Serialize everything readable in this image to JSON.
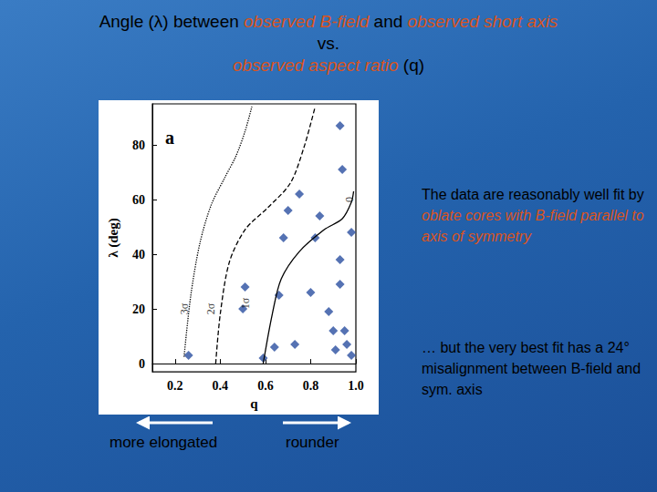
{
  "slide": {
    "title": [
      [
        {
          "text": "Angle (λ) between ",
          "color": "#000000"
        },
        {
          "text": "observed B-field",
          "color": "#d9541e"
        },
        {
          "text": " and ",
          "color": "#000000"
        },
        {
          "text": "observed short axis",
          "color": "#d9541e"
        }
      ],
      [
        {
          "text": "vs.",
          "color": "#000000"
        }
      ],
      [
        {
          "text": "observed aspect ratio",
          "color": "#d9541e"
        },
        {
          "text": " (q)",
          "color": "#000000"
        }
      ]
    ],
    "notes": [
      [
        {
          "text": "The data are reasonably well fit by ",
          "color": "#000000"
        },
        {
          "text": "oblate cores with B-field parallel to axis of symmetry",
          "color": "#d9541e"
        }
      ],
      [
        {
          "text": "… but the very best fit has a 24° misalignment between B-field and sym. axis",
          "color": "#000000"
        }
      ]
    ],
    "direction_labels": [
      "more elongated",
      "rounder"
    ]
  },
  "chart_data": {
    "type": "scatter",
    "panel_label": "a",
    "xlabel": "q",
    "ylabel": "λ (deg)",
    "xlim": [
      0.1,
      1.0
    ],
    "xticks": [
      0.2,
      0.4,
      0.6,
      0.8,
      {
        "value": 1,
        "label": "1.0"
      }
    ],
    "ylim": [
      -3,
      95
    ],
    "yticks": [
      0,
      20,
      40,
      60,
      80
    ],
    "grid": false,
    "series": [
      {
        "type": "scatter",
        "marker": "diamond",
        "color": "#2a4fa0",
        "x": [
          0.93,
          0.94,
          0.75,
          0.7,
          0.84,
          0.98,
          0.68,
          0.82,
          0.93,
          0.93,
          0.51,
          0.66,
          0.8,
          0.5,
          0.88,
          0.9,
          0.95,
          0.26,
          0.59,
          0.64,
          0.73,
          0.91,
          0.98,
          0.96
        ],
        "values": [
          87,
          71,
          62,
          56,
          54,
          48,
          46,
          46,
          38,
          29,
          28,
          25,
          26,
          20,
          19,
          12,
          12,
          3,
          2,
          6,
          7,
          5,
          3,
          7
        ]
      },
      {
        "type": "line",
        "line_style": "dotted",
        "color": "#000000",
        "x": [
          0.24,
          0.27,
          0.31,
          0.36,
          0.42,
          0.47,
          0.51,
          0.54
        ],
        "values": [
          2.5,
          25,
          44,
          58,
          68,
          76,
          85,
          94
        ]
      },
      {
        "type": "line",
        "line_style": "dashed",
        "color": "#000000",
        "x": [
          0.38,
          0.4,
          0.44,
          0.51,
          0.61,
          0.71,
          0.77,
          0.82
        ],
        "values": [
          0,
          18,
          37,
          49,
          57,
          66,
          79,
          94
        ]
      },
      {
        "type": "line",
        "line_style": "solid",
        "color": "#000000",
        "x": [
          0.59,
          0.63,
          0.67,
          0.75,
          0.86,
          0.94,
          0.98,
          0.99
        ],
        "values": [
          0,
          18,
          31,
          41,
          49,
          53,
          59,
          63
        ]
      }
    ],
    "annotations": [
      {
        "text": "3σ",
        "x": 0.24,
        "y": 20
      },
      {
        "text": "2σ",
        "x": 0.36,
        "y": 20
      },
      {
        "text": "1σ",
        "x": 0.51,
        "y": 22
      },
      {
        "text": "0",
        "x": 0.97,
        "y": 60
      }
    ]
  }
}
